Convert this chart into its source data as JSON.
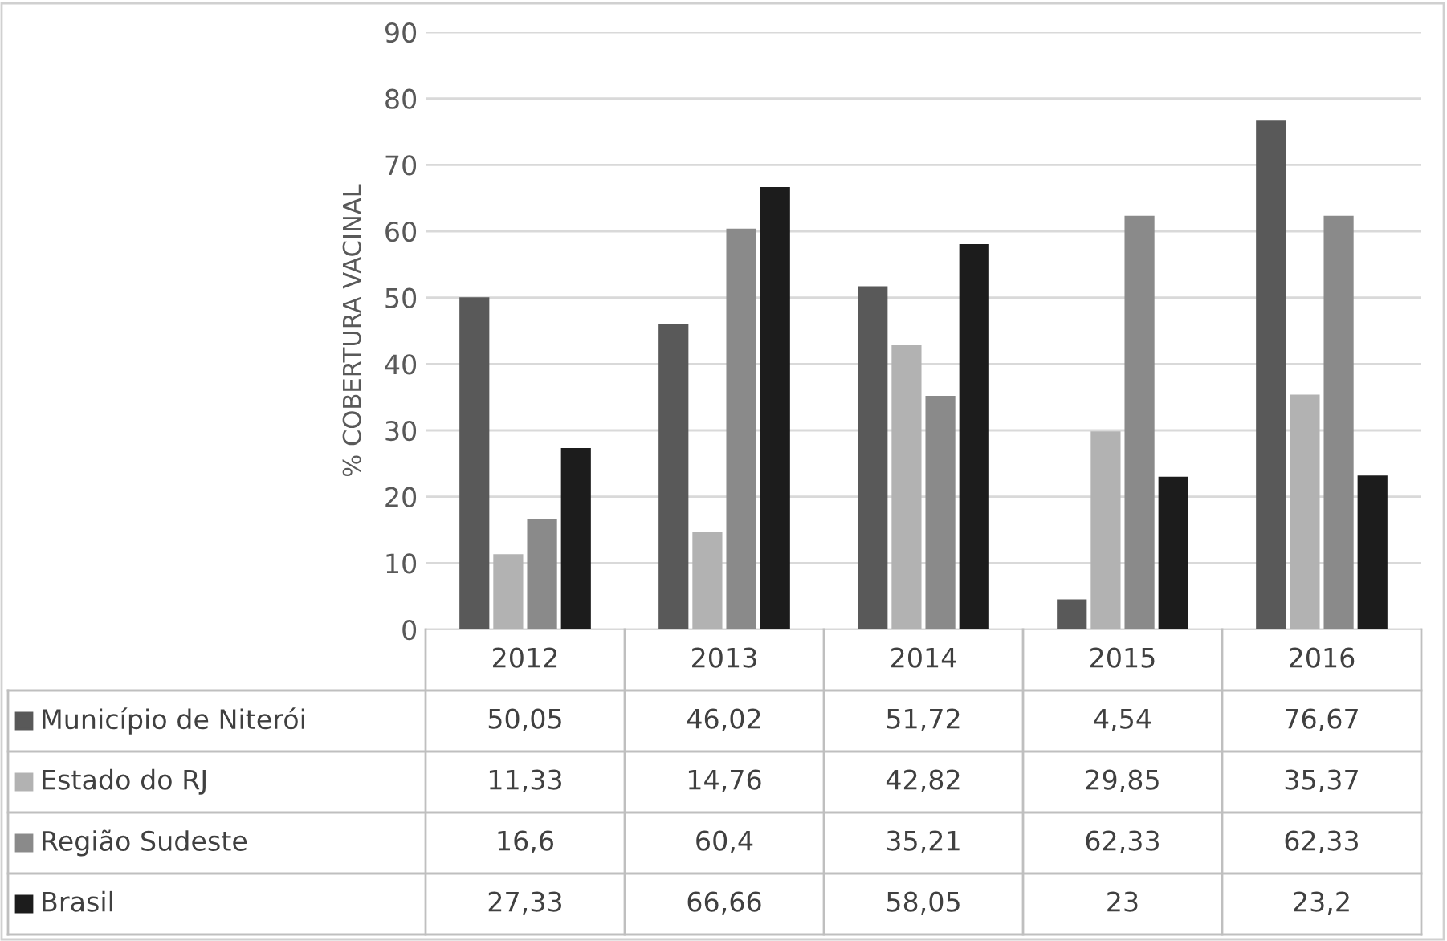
{
  "chart_data": {
    "type": "bar",
    "ylabel": "% COBERTURA VACINAL",
    "categories": [
      "2012",
      "2013",
      "2014",
      "2015",
      "2016"
    ],
    "series": [
      {
        "name": "Município de Niterói",
        "color": "#595959",
        "values": [
          50.05,
          46.02,
          51.72,
          4.54,
          76.67
        ],
        "value_labels": [
          "50,05",
          "46,02",
          "51,72",
          "4,54",
          "76,67"
        ]
      },
      {
        "name": "Estado do RJ",
        "color": "#b2b2b2",
        "values": [
          11.33,
          14.76,
          42.82,
          29.85,
          35.37
        ],
        "value_labels": [
          "11,33",
          "14,76",
          "42,82",
          "29,85",
          "35,37"
        ]
      },
      {
        "name": "Região Sudeste",
        "color": "#8a8a8a",
        "values": [
          16.6,
          60.4,
          35.21,
          62.33,
          62.33
        ],
        "value_labels": [
          "16,6",
          "60,4",
          "35,21",
          "62,33",
          "62,33"
        ]
      },
      {
        "name": "Brasil",
        "color": "#1c1c1c",
        "values": [
          27.33,
          66.66,
          58.05,
          23,
          23.2
        ],
        "value_labels": [
          "27,33",
          "66,66",
          "58,05",
          "23",
          "23,2"
        ]
      }
    ],
    "ylim": [
      0,
      90
    ],
    "yticks": [
      0,
      10,
      20,
      30,
      40,
      50,
      60,
      70,
      80,
      90
    ],
    "grid": "y",
    "legend": "bottom left"
  }
}
